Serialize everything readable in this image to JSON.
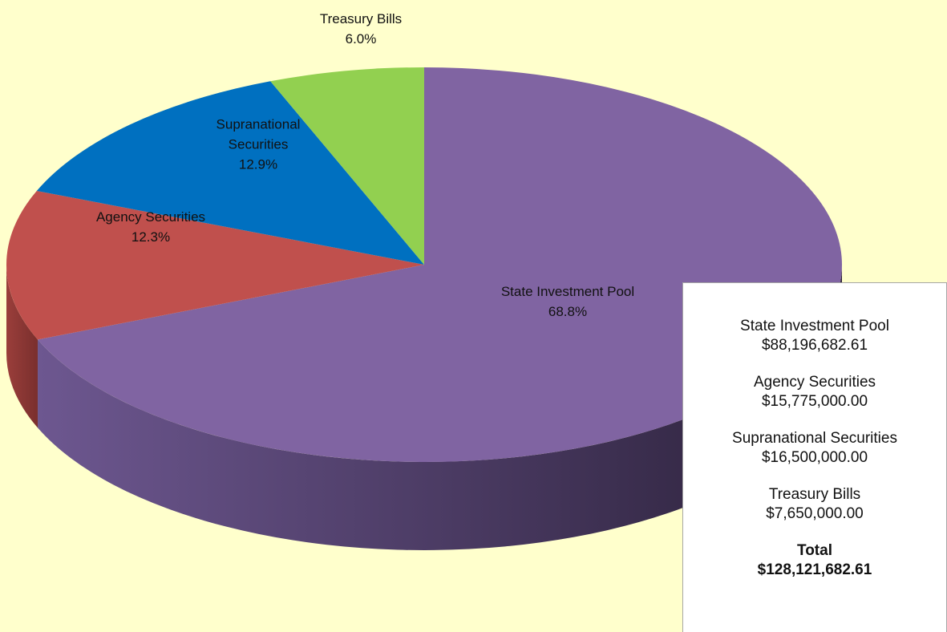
{
  "chart_data": {
    "type": "pie3d",
    "categories": [
      "State Investment Pool",
      "Agency Securities",
      "Supranational Securities",
      "Treasury Bills"
    ],
    "values": [
      68.8,
      12.3,
      12.9,
      6.0
    ],
    "value_labels": [
      "68.8%",
      "12.3%",
      "12.9%",
      "6.0%"
    ],
    "colors": [
      "#8064A2",
      "#C0504D",
      "#0070C0",
      "#92D050"
    ],
    "legend": {
      "items": [
        {
          "name": "State Investment Pool",
          "amount": "$88,196,682.61"
        },
        {
          "name": "Agency Securities",
          "amount": "$15,775,000.00"
        },
        {
          "name": "Supranational Securities",
          "amount": "$16,500,000.00"
        },
        {
          "name": "Treasury Bills",
          "amount": "$7,650,000.00"
        }
      ],
      "total": {
        "name": "Total",
        "amount": "$128,121,682.61"
      }
    }
  }
}
